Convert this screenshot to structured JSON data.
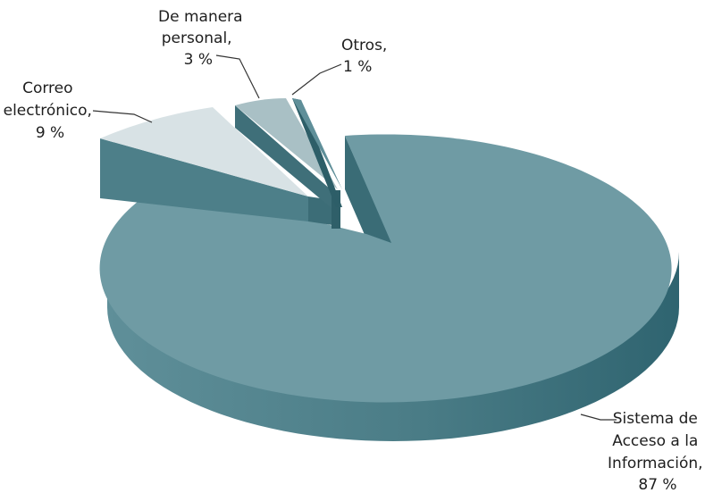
{
  "chart_data": {
    "type": "pie",
    "style": "3d-exploded",
    "title": "",
    "slices": [
      {
        "name": "Sistema de Acceso a la Información",
        "value": 87,
        "value_label": "87 %",
        "label_lines": [
          "Sistema de",
          "Acceso a la",
          "Información,",
          "87 %"
        ],
        "color_top": "#6e9aa3",
        "color_side": "#3b6e78"
      },
      {
        "name": "Correo electrónico",
        "value": 9,
        "value_label": "9 %",
        "label_lines": [
          "Correo",
          "electrónico,",
          "9 %"
        ],
        "color_top": "#d7e1e4",
        "color_side": "#4d7f89"
      },
      {
        "name": "De manera personal",
        "value": 3,
        "value_label": "3 %",
        "label_lines": [
          "De manera",
          "personal,",
          "3 %"
        ],
        "color_top": "#a9c0c5",
        "color_side": "#3f6f79"
      },
      {
        "name": "Otros",
        "value": 1,
        "value_label": "1 %",
        "label_lines": [
          "Otros,",
          "1 %"
        ],
        "color_top": "#5f8f99",
        "color_side": "#2d5e68"
      }
    ]
  }
}
